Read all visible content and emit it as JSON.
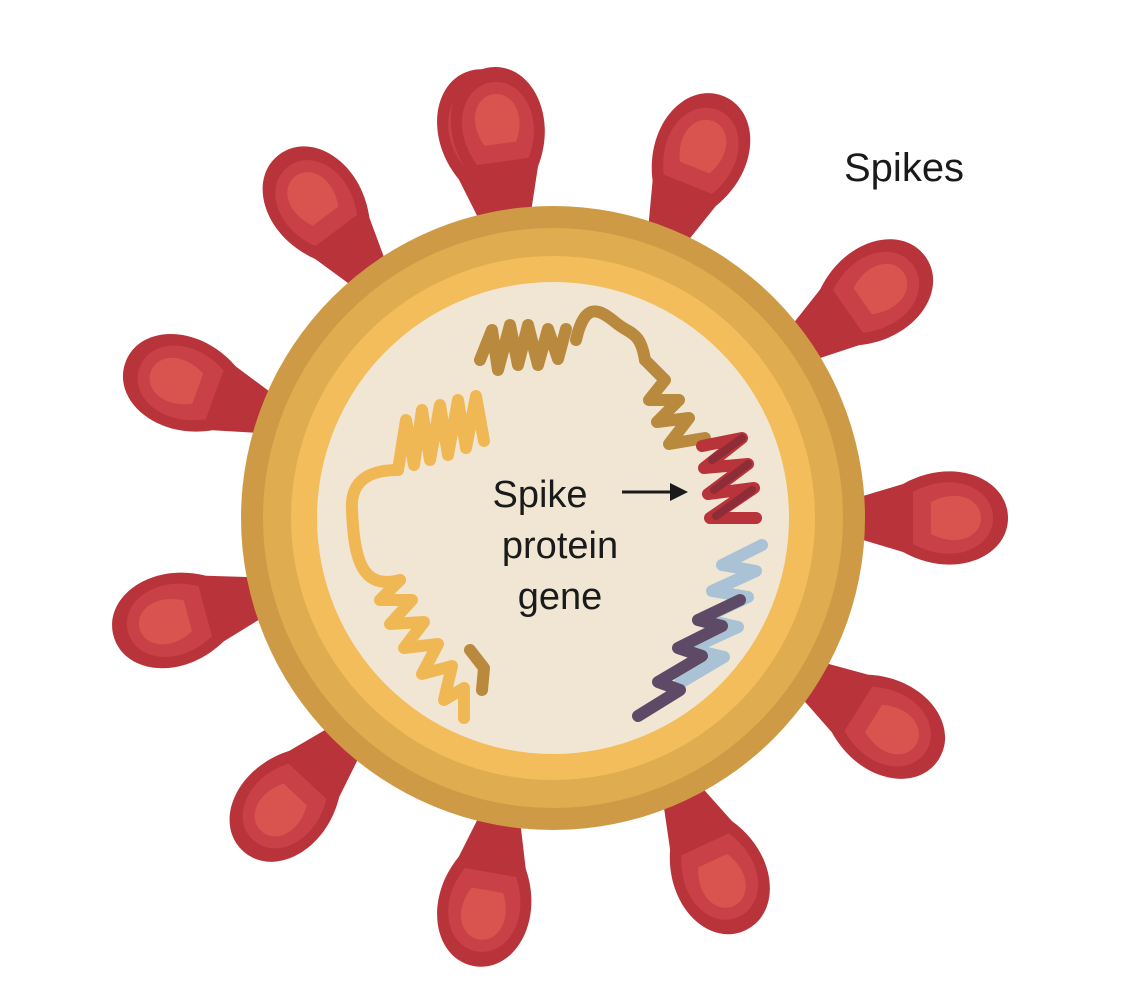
{
  "labels": {
    "spikes": "Spikes",
    "gene_line1": "Spike",
    "gene_line2": "protein",
    "gene_line3": "gene"
  },
  "colors": {
    "spike_outer": "#b8333a",
    "spike_mid": "#c94047",
    "spike_inner": "#d9534f",
    "envelope_outer": "#cf9a45",
    "envelope_mid": "#e0ac50",
    "envelope_inner": "#f3bd5c",
    "core": "#f1e6d3",
    "rna_light": "#f0b855",
    "rna_dark": "#b98a3e",
    "rna_spike_gene": "#b8333a",
    "rna_spike_gene_dark": "#8e2d38",
    "rna_blue": "#a9c2d6",
    "rna_purple": "#5e4a66"
  }
}
